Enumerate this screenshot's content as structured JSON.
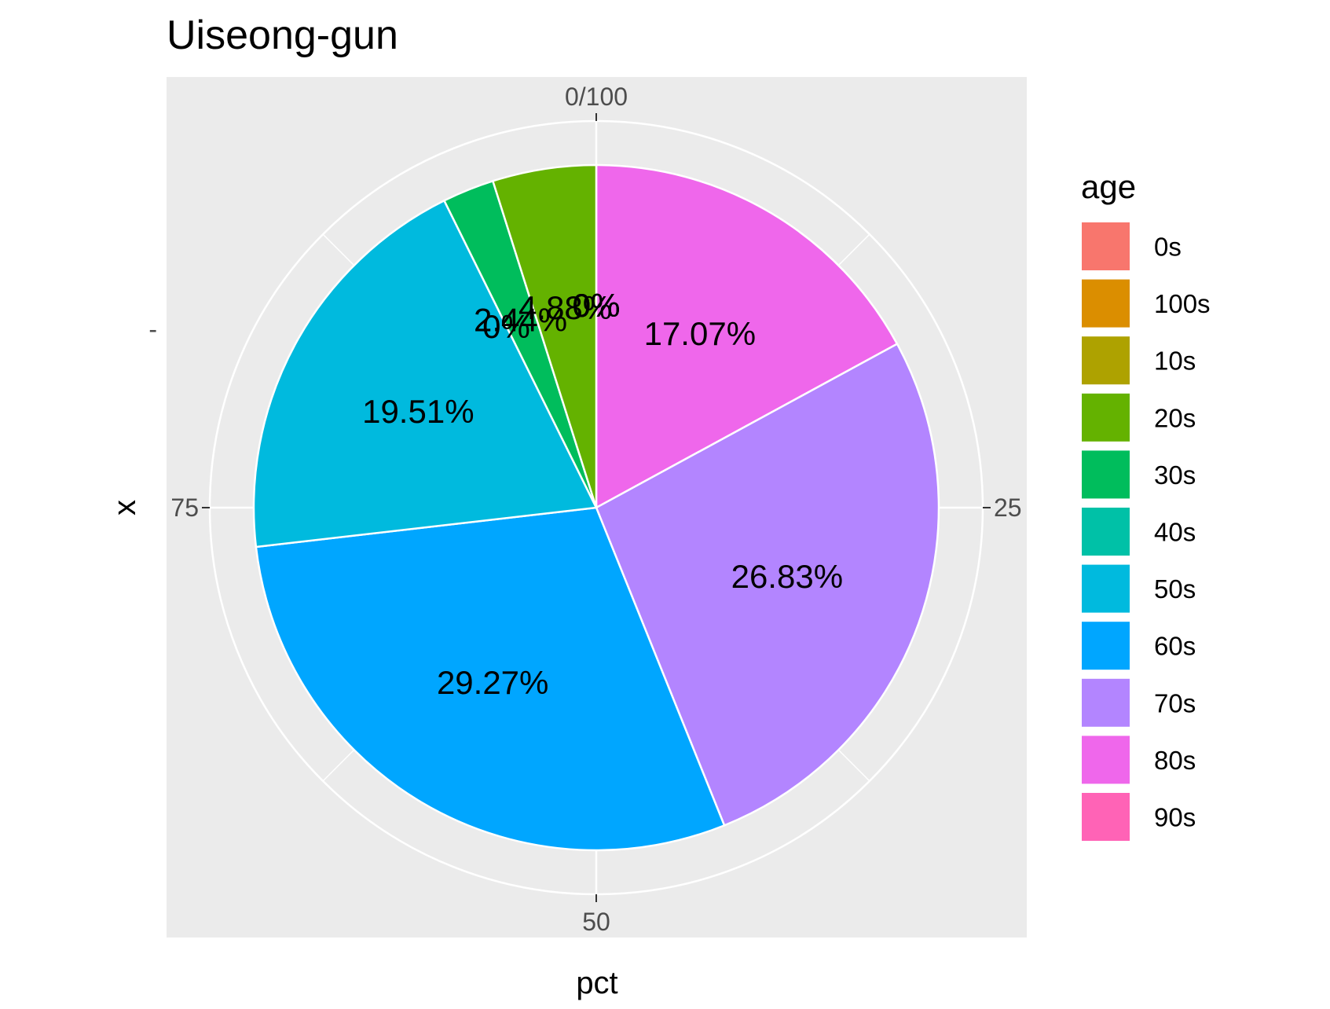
{
  "chart_data": {
    "type": "pie",
    "title": "Uiseong-gun",
    "xlabel": "pct",
    "ylabel": "x",
    "y_tick_label": "-",
    "angle_ticks": [
      {
        "value": 0,
        "label": "0/100"
      },
      {
        "value": 25,
        "label": "25"
      },
      {
        "value": 50,
        "label": "50"
      },
      {
        "value": 75,
        "label": "75"
      }
    ],
    "legend_title": "age",
    "legend_position": "right",
    "categories": [
      "0s",
      "100s",
      "10s",
      "20s",
      "30s",
      "40s",
      "50s",
      "60s",
      "70s",
      "80s",
      "90s"
    ],
    "colors": [
      "#F8766D",
      "#DB8E00",
      "#AEA200",
      "#64B200",
      "#00BD5C",
      "#00C1A7",
      "#00BADE",
      "#00A6FF",
      "#B385FF",
      "#EF67EB",
      "#FF63B6"
    ],
    "slices": [
      {
        "category": "80s",
        "value": 17.07,
        "label": "17.07%",
        "color": "#EF67EB"
      },
      {
        "category": "70s",
        "value": 26.83,
        "label": "26.83%",
        "color": "#B385FF"
      },
      {
        "category": "60s",
        "value": 29.27,
        "label": "29.27%",
        "color": "#00A6FF"
      },
      {
        "category": "50s",
        "value": 19.51,
        "label": "19.51%",
        "color": "#00BADE"
      },
      {
        "category": "40s",
        "value": 0,
        "label": "0%",
        "color": "#00C1A7"
      },
      {
        "category": "30s",
        "value": 2.44,
        "label": "2.44%",
        "color": "#00BD5C"
      },
      {
        "category": "20s",
        "value": 4.88,
        "label": "4.88%",
        "color": "#64B200"
      },
      {
        "category": "10s",
        "value": 0,
        "label": "0%",
        "color": "#AEA200"
      },
      {
        "category": "100s",
        "value": 0,
        "label": "0%",
        "color": "#DB8E00"
      },
      {
        "category": "0s",
        "value": 0,
        "label": "0%",
        "color": "#F8766D"
      },
      {
        "category": "90s",
        "value": 0,
        "label": "0%",
        "color": "#FF63B6"
      }
    ],
    "panel_background": "#EBEBEB",
    "grid": true
  }
}
